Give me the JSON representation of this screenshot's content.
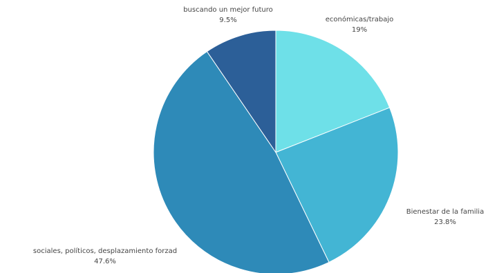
{
  "chart_data": {
    "type": "pie",
    "slices": [
      {
        "label": "económicas/trabajo",
        "value_label": "19%",
        "value": 19.0,
        "color": "#6ee0e8"
      },
      {
        "label": "Bienestar de la familia",
        "value_label": "23.8%",
        "value": 23.8,
        "color": "#43b5d4"
      },
      {
        "label": "sociales, políticos, desplazamiento forzad",
        "value_label": "47.6%",
        "value": 47.6,
        "color": "#2e8ab8"
      },
      {
        "label": "buscando un mejor futuro",
        "value_label": "9.5%",
        "value": 9.5,
        "color": "#2c5f98"
      }
    ],
    "start_angle": "12 o'clock",
    "direction": "clockwise",
    "legend": "none"
  }
}
